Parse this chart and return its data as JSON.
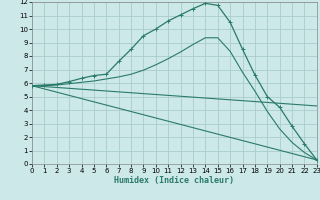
{
  "xlabel": "Humidex (Indice chaleur)",
  "background_color": "#cce8e8",
  "grid_color": "#aacccc",
  "line_color": "#2a7a6a",
  "xlim": [
    0,
    23
  ],
  "ylim": [
    0,
    12
  ],
  "xticks": [
    0,
    1,
    2,
    3,
    4,
    5,
    6,
    7,
    8,
    9,
    10,
    11,
    12,
    13,
    14,
    15,
    16,
    17,
    18,
    19,
    20,
    21,
    22,
    23
  ],
  "yticks": [
    0,
    1,
    2,
    3,
    4,
    5,
    6,
    7,
    8,
    9,
    10,
    11,
    12
  ],
  "series": [
    {
      "x": [
        0,
        1,
        2,
        3,
        4,
        5,
        6,
        7,
        8,
        9,
        10,
        11,
        12,
        13,
        14,
        15,
        16,
        17,
        18,
        19,
        20,
        21,
        22,
        23
      ],
      "y": [
        5.8,
        5.85,
        5.9,
        6.1,
        6.35,
        6.55,
        6.65,
        7.6,
        8.5,
        9.5,
        10.0,
        10.6,
        11.05,
        11.5,
        11.9,
        11.75,
        10.5,
        8.5,
        6.6,
        5.0,
        4.2,
        2.8,
        1.5,
        0.3
      ],
      "marker": true
    },
    {
      "x": [
        0,
        1,
        2,
        3,
        4,
        5,
        6,
        7,
        8,
        9,
        10,
        11,
        12,
        13,
        14,
        15,
        16,
        17,
        18,
        19,
        20,
        21,
        22,
        23
      ],
      "y": [
        5.8,
        5.8,
        5.85,
        5.95,
        6.05,
        6.15,
        6.3,
        6.45,
        6.65,
        6.95,
        7.35,
        7.8,
        8.3,
        8.85,
        9.35,
        9.35,
        8.35,
        6.8,
        5.4,
        3.9,
        2.6,
        1.6,
        0.85,
        0.3
      ],
      "marker": false
    },
    {
      "x": [
        0,
        23
      ],
      "y": [
        5.8,
        4.3
      ],
      "marker": false
    },
    {
      "x": [
        0,
        23
      ],
      "y": [
        5.8,
        0.3
      ],
      "marker": false
    }
  ]
}
